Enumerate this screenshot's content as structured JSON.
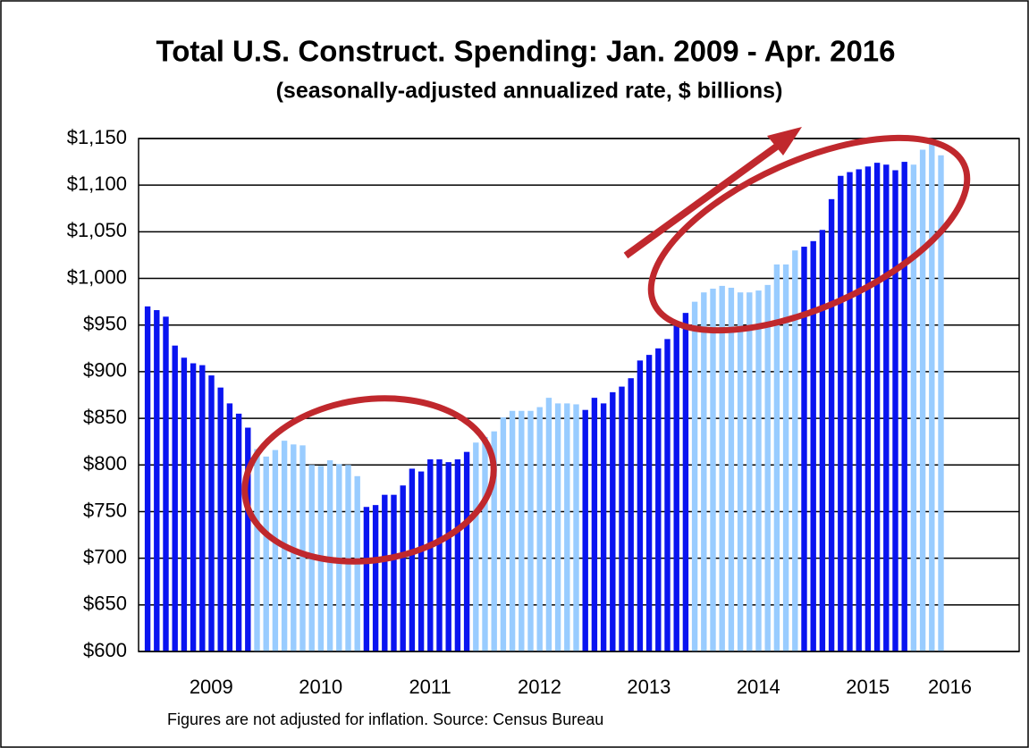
{
  "chart_data": {
    "type": "bar",
    "title": "Total U.S. Construct. Spending: Jan. 2009 - Apr. 2016",
    "subtitle": "(seasonally-adjusted annualized rate, $ billions)",
    "note": "Figures are not adjusted for inflation.  Source:  Census Bureau",
    "categories": [
      null,
      null,
      null,
      null,
      null,
      null,
      "2009",
      null,
      null,
      null,
      null,
      null,
      null,
      null,
      null,
      null,
      null,
      null,
      "2010",
      null,
      null,
      null,
      null,
      null,
      null,
      null,
      null,
      null,
      null,
      null,
      "2011",
      null,
      null,
      null,
      null,
      null,
      null,
      null,
      null,
      null,
      null,
      null,
      "2012",
      null,
      null,
      null,
      null,
      null,
      null,
      null,
      null,
      null,
      null,
      null,
      "2013",
      null,
      null,
      null,
      null,
      null,
      null,
      null,
      null,
      null,
      null,
      null,
      "2014",
      null,
      null,
      null,
      null,
      null,
      null,
      null,
      null,
      null,
      null,
      null,
      "2015",
      null,
      null,
      null,
      null,
      null,
      null,
      null,
      null,
      "2016"
    ],
    "values": [
      970,
      966,
      959,
      928,
      915,
      909,
      907,
      896,
      883,
      866,
      855,
      840,
      817,
      809,
      816,
      826,
      822,
      821,
      800,
      799,
      805,
      801,
      800,
      788,
      755,
      757,
      768,
      768,
      778,
      796,
      793,
      806,
      806,
      803,
      806,
      814,
      824,
      830,
      836,
      851,
      858,
      858,
      858,
      862,
      872,
      866,
      866,
      865,
      859,
      872,
      866,
      878,
      884,
      893,
      912,
      918,
      925,
      935,
      950,
      963,
      975,
      985,
      989,
      992,
      990,
      985,
      985,
      987,
      993,
      1015,
      1015,
      1030,
      1034,
      1040,
      1052,
      1085,
      1110,
      1114,
      1117,
      1120,
      1124,
      1122,
      1116,
      1125,
      1122,
      1138,
      1150,
      1132
    ],
    "colors": [
      "#0a14f0",
      "#0a14f0",
      "#0a14f0",
      "#0a14f0",
      "#0a14f0",
      "#0a14f0",
      "#0a14f0",
      "#0a14f0",
      "#0a14f0",
      "#0a14f0",
      "#0a14f0",
      "#0a14f0",
      "#99ccff",
      "#99ccff",
      "#99ccff",
      "#99ccff",
      "#99ccff",
      "#99ccff",
      "#99ccff",
      "#99ccff",
      "#99ccff",
      "#99ccff",
      "#99ccff",
      "#99ccff",
      "#0a14f0",
      "#0a14f0",
      "#0a14f0",
      "#0a14f0",
      "#0a14f0",
      "#0a14f0",
      "#0a14f0",
      "#0a14f0",
      "#0a14f0",
      "#0a14f0",
      "#0a14f0",
      "#0a14f0",
      "#99ccff",
      "#99ccff",
      "#99ccff",
      "#99ccff",
      "#99ccff",
      "#99ccff",
      "#99ccff",
      "#99ccff",
      "#99ccff",
      "#99ccff",
      "#99ccff",
      "#99ccff",
      "#0a14f0",
      "#0a14f0",
      "#0a14f0",
      "#0a14f0",
      "#0a14f0",
      "#0a14f0",
      "#0a14f0",
      "#0a14f0",
      "#0a14f0",
      "#0a14f0",
      "#0a14f0",
      "#0a14f0",
      "#99ccff",
      "#99ccff",
      "#99ccff",
      "#99ccff",
      "#99ccff",
      "#99ccff",
      "#99ccff",
      "#99ccff",
      "#99ccff",
      "#99ccff",
      "#99ccff",
      "#99ccff",
      "#0a14f0",
      "#0a14f0",
      "#0a14f0",
      "#0a14f0",
      "#0a14f0",
      "#0a14f0",
      "#0a14f0",
      "#0a14f0",
      "#0a14f0",
      "#0a14f0",
      "#0a14f0",
      "#0a14f0",
      "#99ccff",
      "#99ccff",
      "#99ccff",
      "#99ccff"
    ],
    "ylim": [
      600,
      1150
    ],
    "yticks": [
      {
        "value": 600,
        "label": "$600"
      },
      {
        "value": 650,
        "label": "$650"
      },
      {
        "value": 700,
        "label": "$700"
      },
      {
        "value": 750,
        "label": "$750"
      },
      {
        "value": 800,
        "label": "$800"
      },
      {
        "value": 850,
        "label": "$850"
      },
      {
        "value": 900,
        "label": "$900"
      },
      {
        "value": 950,
        "label": "$950"
      },
      {
        "value": 1000,
        "label": "$1,000"
      },
      {
        "value": 1050,
        "label": "$1,050"
      },
      {
        "value": 1100,
        "label": "$1,100"
      },
      {
        "value": 1150,
        "label": "$1,150"
      }
    ],
    "grid": true
  }
}
